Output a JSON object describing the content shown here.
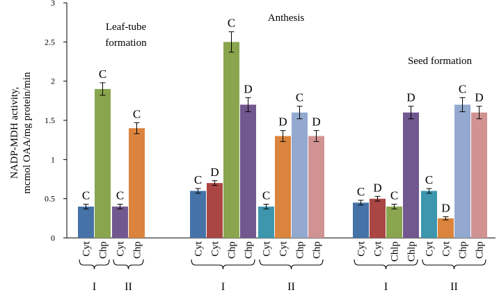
{
  "chart_data": {
    "type": "bar",
    "title": "",
    "xlabel": "",
    "ylabel_line1": "NADP-MDH activity,",
    "ylabel_line2": "mcmol OAA/mg protein/min",
    "ylim": [
      0,
      3
    ],
    "yticks": [
      "0",
      "0.5",
      "1",
      "1.5",
      "2",
      "2.5",
      "3"
    ],
    "grid": false,
    "panels": [
      {
        "label": "Leaf-tube formation",
        "label_lines": [
          "Leaf-tube",
          "formation"
        ],
        "groups": [
          {
            "label": "I",
            "bars": [
              {
                "category": "Cyt",
                "value": 0.4,
                "error": 0.03,
                "letter": "C",
                "color": "#4572a7"
              },
              {
                "category": "Chp",
                "value": 1.9,
                "error": 0.08,
                "letter": "C",
                "color": "#89a54e"
              }
            ]
          },
          {
            "label": "II",
            "bars": [
              {
                "category": "Cyt",
                "value": 0.4,
                "error": 0.03,
                "letter": "C",
                "color": "#71588f"
              },
              {
                "category": "Chp",
                "value": 1.4,
                "error": 0.07,
                "letter": "C",
                "color": "#db843d"
              }
            ]
          }
        ]
      },
      {
        "label": "Anthesis",
        "label_lines": [
          "Anthesis"
        ],
        "groups": [
          {
            "label": "I",
            "bars": [
              {
                "category": "Cyt",
                "value": 0.6,
                "error": 0.03,
                "letter": "C",
                "color": "#4572a7"
              },
              {
                "category": "Cyt",
                "value": 0.7,
                "error": 0.03,
                "letter": "D",
                "color": "#aa4643"
              },
              {
                "category": "Chp",
                "value": 2.5,
                "error": 0.13,
                "letter": "C",
                "color": "#89a54e"
              },
              {
                "category": "Chp",
                "value": 1.7,
                "error": 0.09,
                "letter": "D",
                "color": "#71588f"
              }
            ]
          },
          {
            "label": "II",
            "bars": [
              {
                "category": "Cyt",
                "value": 0.4,
                "error": 0.03,
                "letter": "C",
                "color": "#3d96ae"
              },
              {
                "category": "Cyt",
                "value": 1.3,
                "error": 0.07,
                "letter": "D",
                "color": "#db843d"
              },
              {
                "category": "Chp",
                "value": 1.6,
                "error": 0.08,
                "letter": "C",
                "color": "#93a9cf"
              },
              {
                "category": "Chp",
                "value": 1.3,
                "error": 0.07,
                "letter": "D",
                "color": "#d19392"
              }
            ]
          }
        ]
      },
      {
        "label": "Seed formation",
        "label_lines": [
          "Seed formation"
        ],
        "groups": [
          {
            "label": "I",
            "bars": [
              {
                "category": "Cyt",
                "value": 0.45,
                "error": 0.03,
                "letter": "C",
                "color": "#4572a7"
              },
              {
                "category": "Cyt",
                "value": 0.5,
                "error": 0.03,
                "letter": "D",
                "color": "#aa4643"
              },
              {
                "category": "Chlp",
                "value": 0.4,
                "error": 0.03,
                "letter": "C",
                "color": "#89a54e"
              },
              {
                "category": "Chlp",
                "value": 1.6,
                "error": 0.08,
                "letter": "D",
                "color": "#71588f"
              }
            ]
          },
          {
            "label": "II",
            "bars": [
              {
                "category": "Cyt",
                "value": 0.6,
                "error": 0.03,
                "letter": "C",
                "color": "#3d96ae"
              },
              {
                "category": "Cyt",
                "value": 0.25,
                "error": 0.02,
                "letter": "D",
                "color": "#db843d"
              },
              {
                "category": "Chp",
                "value": 1.7,
                "error": 0.09,
                "letter": "C",
                "color": "#93a9cf"
              },
              {
                "category": "Chp",
                "value": 1.6,
                "error": 0.08,
                "letter": "D",
                "color": "#d19392"
              }
            ]
          }
        ]
      }
    ]
  }
}
